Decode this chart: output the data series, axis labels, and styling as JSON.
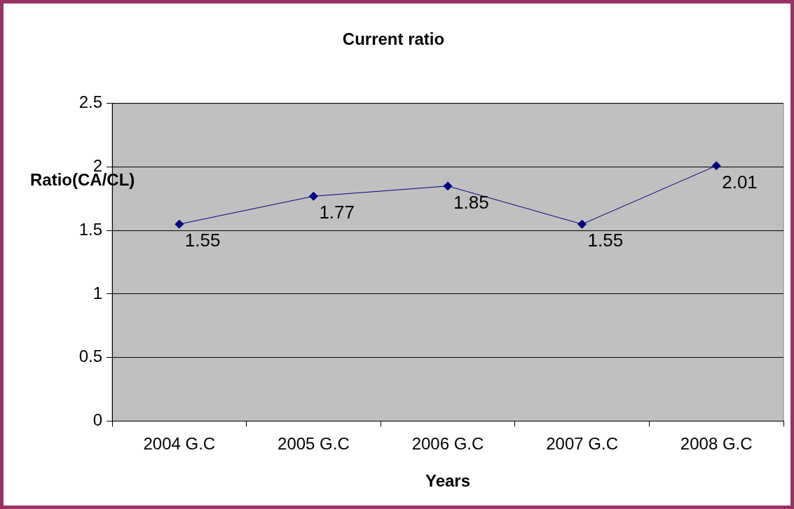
{
  "chart_data": {
    "type": "line",
    "title": "Current ratio",
    "xlabel": "Years",
    "ylabel": "Ratio(CA/CL)",
    "categories": [
      "2004 G.C",
      "2005 G.C",
      "2006 G.C",
      "2007 G.C",
      "2008 G.C"
    ],
    "series": [
      {
        "color": "#000080",
        "values": [
          1.55,
          1.77,
          1.85,
          1.55,
          2.01
        ]
      }
    ],
    "ylim": [
      0,
      2.5
    ],
    "yticks": [
      0,
      0.5,
      1,
      1.5,
      2,
      2.5
    ],
    "grid": "y",
    "marker": "diamond",
    "data_labels": true,
    "legend": false
  }
}
